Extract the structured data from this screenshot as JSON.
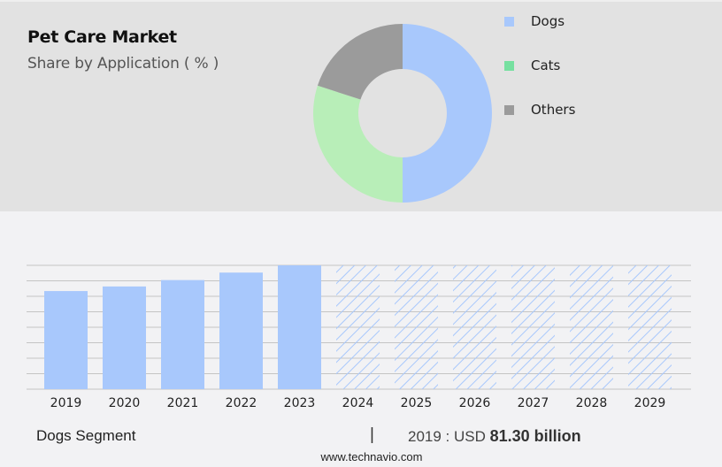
{
  "header": {
    "title": "Pet Care Market",
    "subtitle": "Share by Application ( % )"
  },
  "legend": [
    {
      "label": "Dogs",
      "color": "#a8c8fc"
    },
    {
      "label": "Cats",
      "color": "#76e0a0"
    },
    {
      "label": "Others",
      "color": "#9b9b9b"
    }
  ],
  "footer": {
    "segment": "Dogs Segment",
    "separator": "|",
    "year_label": "2019 : USD ",
    "value": "81.30 billion",
    "url": "www.technavio.com"
  },
  "colors": {
    "dogs": "#a8c8fc",
    "cats": "#b8eeb8",
    "cats_legend": "#76e0a0",
    "others": "#9b9b9b",
    "bar": "#a8c8fc",
    "top_bg": "#e2e2e2",
    "bottom_bg": "#f2f2f4",
    "grid": "#c4c4c4"
  },
  "chart_data": [
    {
      "type": "pie",
      "title": "Pet Care Market - Share by Application ( % )",
      "donut": true,
      "categories": [
        "Dogs",
        "Cats",
        "Others"
      ],
      "values": [
        50,
        30,
        20
      ],
      "legend_position": "right"
    },
    {
      "type": "bar",
      "title": "Dogs Segment",
      "categories": [
        "2019",
        "2020",
        "2021",
        "2022",
        "2023",
        "2024",
        "2025",
        "2026",
        "2027",
        "2028",
        "2029"
      ],
      "values": [
        81.3,
        85.1,
        90.4,
        96.6,
        102.6,
        null,
        null,
        null,
        null,
        null,
        null
      ],
      "forecast": [
        false,
        false,
        false,
        false,
        false,
        true,
        true,
        true,
        true,
        true,
        true
      ],
      "xlabel": "",
      "ylabel": "",
      "grid": true,
      "y_axis_visible": false,
      "annotation": "2019 : USD 81.30 billion"
    }
  ]
}
